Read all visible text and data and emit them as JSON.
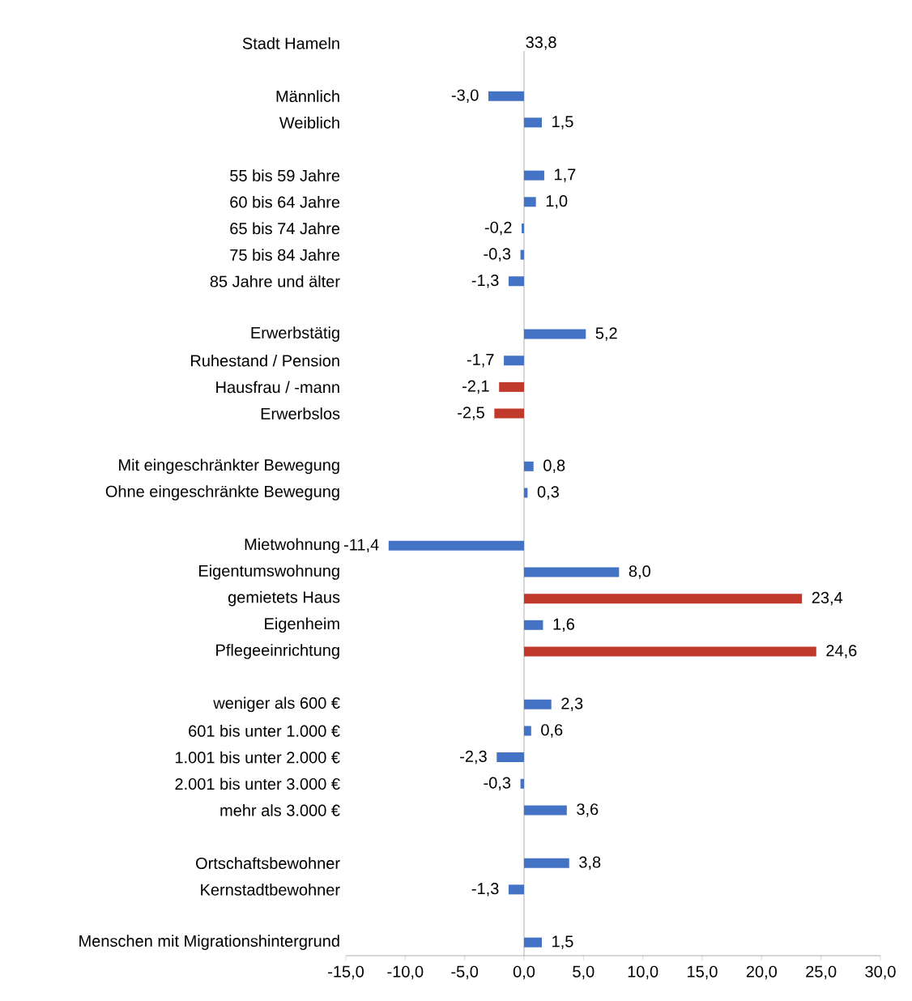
{
  "chart_data": {
    "type": "bar",
    "orientation": "horizontal",
    "categories": [
      "Stadt Hameln",
      null,
      "Männlich",
      "Weiblich",
      null,
      "55 bis 59 Jahre",
      "60 bis 64 Jahre",
      "65 bis 74 Jahre",
      "75 bis 84 Jahre",
      "85 Jahre und älter",
      null,
      "Erwerbstätig",
      "Ruhestand / Pension",
      "Hausfrau / -mann",
      "Erwerbslos",
      null,
      "Mit eingeschränkter Bewegung",
      "Ohne eingeschränkte Bewegung",
      null,
      "Mietwohnung",
      "Eigentumswohnung",
      "gemietets Haus",
      "Eigenheim",
      "Pflegeeinrichtung",
      null,
      "weniger als 600 €",
      "601 bis unter 1.000 €",
      "1.001 bis unter 2.000 €",
      "2.001 bis unter 3.000 €",
      "mehr als 3.000 €",
      null,
      "Ortschaftsbewohner",
      "Kernstadtbewohner",
      null,
      "Menschen mit Migrationshintergrund"
    ],
    "values": [
      null,
      null,
      -3.0,
      1.5,
      null,
      1.7,
      1.0,
      -0.2,
      -0.3,
      -1.3,
      null,
      5.2,
      -1.7,
      -2.1,
      -2.5,
      null,
      0.8,
      0.3,
      null,
      -11.4,
      8.0,
      23.4,
      1.6,
      24.6,
      null,
      2.3,
      0.6,
      -2.3,
      -0.3,
      3.6,
      null,
      3.8,
      -1.3,
      null,
      1.5
    ],
    "value_labels": [
      "33,8",
      null,
      "-3,0",
      "1,5",
      null,
      "1,7",
      "1,0",
      "-0,2",
      "-0,3",
      "-1,3",
      null,
      "5,2",
      "-1,7",
      "-2,1",
      "-2,5",
      null,
      "0,8",
      "0,3",
      null,
      "-11,4",
      "8,0",
      "23,4",
      "1,6",
      "24,6",
      null,
      "2,3",
      "0,6",
      "-2,3",
      "-0,3",
      "3,6",
      null,
      "3,8",
      "-1,3",
      null,
      "1,5"
    ],
    "colors": [
      "#4472c4",
      "#4472c4",
      "#4472c4",
      "#4472c4",
      "#4472c4",
      "#4472c4",
      "#4472c4",
      "#4472c4",
      "#4472c4",
      "#4472c4",
      "#4472c4",
      "#4472c4",
      "#4472c4",
      "#c0392b",
      "#c0392b",
      "#4472c4",
      "#4472c4",
      "#4472c4",
      "#4472c4",
      "#4472c4",
      "#4472c4",
      "#c0392b",
      "#4472c4",
      "#c0392b",
      "#4472c4",
      "#4472c4",
      "#4472c4",
      "#4472c4",
      "#4472c4",
      "#4472c4",
      "#4472c4",
      "#4472c4",
      "#4472c4",
      "#4472c4",
      "#4472c4"
    ],
    "xlim": [
      -15,
      30
    ],
    "xticks": [
      {
        "value": -15,
        "label": "-15,0"
      },
      {
        "value": -10,
        "label": "-10,0"
      },
      {
        "value": -5,
        "label": "-5,0"
      },
      {
        "value": 0,
        "label": "0,0"
      },
      {
        "value": 5,
        "label": "5,0"
      },
      {
        "value": 10,
        "label": "10,0"
      },
      {
        "value": 15,
        "label": "15,0"
      },
      {
        "value": 20,
        "label": "20,0"
      },
      {
        "value": 25,
        "label": "25,0"
      },
      {
        "value": 30,
        "label": "30,0"
      }
    ],
    "data_labels": false
  }
}
